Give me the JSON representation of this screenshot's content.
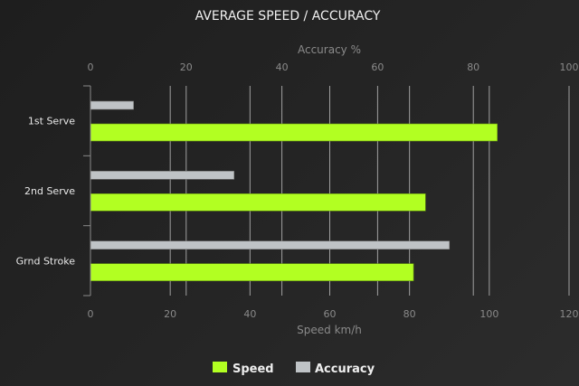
{
  "chart_data": {
    "type": "bar",
    "orientation": "horizontal",
    "title": "AVERAGE SPEED / ACCURACY",
    "categories": [
      "1st Serve",
      "2nd Serve",
      "Grnd Stroke"
    ],
    "series": [
      {
        "name": "Accuracy",
        "axis": "top",
        "color": "#bfc3c6",
        "values": [
          9,
          30,
          75
        ]
      },
      {
        "name": "Speed",
        "axis": "bottom",
        "color": "#b2ff22",
        "values": [
          102,
          84,
          81
        ]
      }
    ],
    "top_axis": {
      "label": "Accuracy %",
      "range": [
        0,
        100
      ],
      "ticks": [
        0,
        20,
        40,
        60,
        80,
        100
      ]
    },
    "bottom_axis": {
      "label": "Speed km/h",
      "range": [
        0,
        120
      ],
      "ticks": [
        0,
        20,
        40,
        60,
        80,
        100,
        120
      ]
    },
    "grid": true,
    "legend": {
      "position": "bottom",
      "items": [
        "Speed",
        "Accuracy"
      ]
    }
  }
}
